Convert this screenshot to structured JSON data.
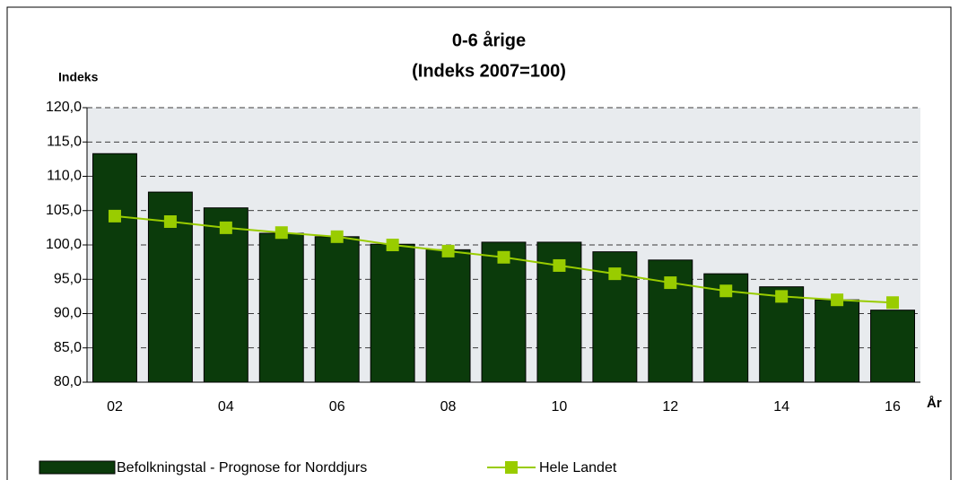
{
  "chart_data": {
    "type": "bar_line",
    "title": "0-6 årige",
    "subtitle": "(Indeks 2007=100)",
    "y_label": "Indeks",
    "x_label": "År",
    "categories": [
      "02",
      null,
      "04",
      null,
      "06",
      null,
      "08",
      null,
      "10",
      null,
      "12",
      null,
      "14",
      null,
      "16"
    ],
    "series": [
      {
        "name": "Befolkningstal - Prognose for Norddjurs",
        "type": "bar",
        "color": "#0b3b0b",
        "values": [
          113.3,
          107.7,
          105.4,
          101.7,
          101.2,
          100.1,
          99.3,
          100.4,
          100.4,
          99.0,
          97.8,
          95.8,
          93.9,
          92.0,
          90.5
        ]
      },
      {
        "name": "Hele Landet",
        "type": "line",
        "color": "#99cc00",
        "values": [
          104.2,
          103.4,
          102.5,
          101.8,
          101.2,
          100.0,
          99.1,
          98.2,
          97.0,
          95.8,
          94.5,
          93.3,
          92.5,
          92.0,
          91.6
        ]
      }
    ],
    "ylim": [
      80,
      120
    ],
    "yticks": [
      {
        "value": 80,
        "label": "80,0"
      },
      {
        "value": 85,
        "label": "85,0"
      },
      {
        "value": 90,
        "label": "90,0"
      },
      {
        "value": 95,
        "label": "95,0"
      },
      {
        "value": 100,
        "label": "100,0"
      },
      {
        "value": 105,
        "label": "105,0"
      },
      {
        "value": 110,
        "label": "110,0"
      },
      {
        "value": 115,
        "label": "115,0"
      },
      {
        "value": 120,
        "label": "120,0"
      }
    ],
    "grid": true,
    "legend": "bottom"
  }
}
